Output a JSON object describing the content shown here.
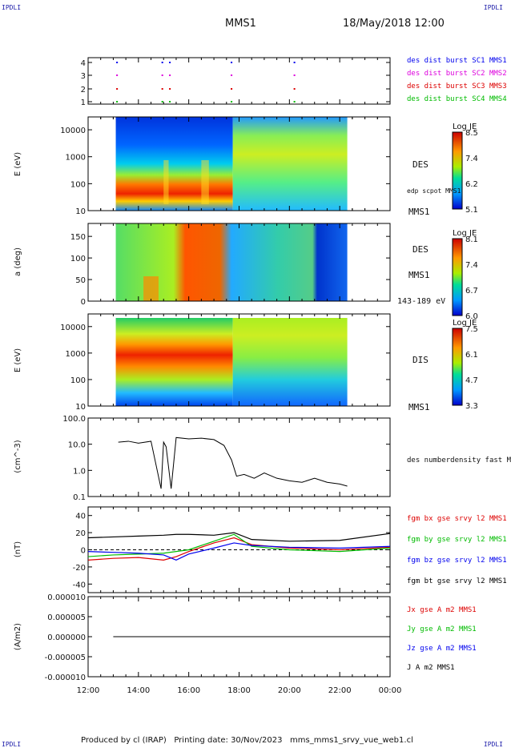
{
  "corner_label": "IPDLI",
  "header": {
    "mission": "MMS1",
    "date_time": "18/May/2018 12:00"
  },
  "footer": {
    "text": "Produced by cl (IRAP)   Printing date: 30/Nov/2023   mms_mms1_srvy_vue_web1.cl"
  },
  "colors": {
    "red": "#dd0000",
    "green": "#00bb00",
    "blue": "#0000ee",
    "magenta": "#dd00dd",
    "black": "#000000"
  },
  "chart_data": [
    {
      "type": "scatter",
      "panel": "burst",
      "yticks": [
        "4",
        "3",
        "2",
        "1"
      ],
      "legend": [
        {
          "name": "des dist burst SC1 MMS1",
          "color": "#0000ee"
        },
        {
          "name": "des dist burst SC2 MMS2",
          "color": "#dd00dd"
        },
        {
          "name": "des dist burst SC3 MMS3",
          "color": "#dd0000"
        },
        {
          "name": "des dist burst SC4 MMS4",
          "color": "#00bb00"
        }
      ],
      "burst_times_h": [
        13.15,
        14.95,
        15.25,
        17.7,
        20.2
      ]
    },
    {
      "type": "heatmap",
      "panel": "des_energy",
      "ylabel": "E (eV)",
      "yscale": "log",
      "ylim": [
        10,
        30000
      ],
      "yticks": [
        "10000",
        "1000",
        "100",
        "10"
      ],
      "side_labels": [
        "DES",
        "edp scpot MMS1",
        "MMS1"
      ],
      "colorbar": {
        "title": "Log JE",
        "ticks": [
          "8.5",
          "7.4",
          "6.2",
          "5.1"
        ]
      },
      "data_start_h": 13.1,
      "data_end_h": 22.3
    },
    {
      "type": "heatmap",
      "panel": "des_pitch",
      "ylabel": "a (deg)",
      "ylim": [
        0,
        180
      ],
      "yticks": [
        "150",
        "100",
        "50",
        "0"
      ],
      "side_labels": [
        "DES",
        "MMS1",
        "143-189 eV"
      ],
      "colorbar": {
        "title": "Log JE",
        "ticks": [
          "8.1",
          "7.4",
          "6.7",
          "6.0"
        ]
      }
    },
    {
      "type": "heatmap",
      "panel": "dis_energy",
      "ylabel": "E (eV)",
      "yscale": "log",
      "ylim": [
        10,
        30000
      ],
      "yticks": [
        "10000",
        "1000",
        "100",
        "10"
      ],
      "side_labels": [
        "DIS",
        "MMS1"
      ],
      "colorbar": {
        "title": "Log JE",
        "ticks": [
          "7.5",
          "6.1",
          "4.7",
          "3.3"
        ]
      }
    },
    {
      "type": "line",
      "panel": "density",
      "ylabel": "(cm^-3)",
      "yscale": "log",
      "ylim": [
        0.1,
        100
      ],
      "yticks": [
        "100.0",
        "10.0",
        "1.0",
        "0.1"
      ],
      "series": [
        {
          "name": "des numberdensity fast M",
          "x": [
            13.2,
            13.6,
            14.0,
            14.5,
            14.9,
            15.0,
            15.1,
            15.3,
            15.5,
            16.0,
            16.5,
            17.0,
            17.4,
            17.7,
            17.9,
            18.2,
            18.6,
            19.0,
            19.5,
            20.0,
            20.5,
            21.0,
            21.5,
            22.0,
            22.3
          ],
          "y": [
            12,
            13,
            11,
            13,
            0.2,
            12,
            8,
            0.2,
            18,
            16,
            17,
            15,
            9,
            2.5,
            0.6,
            0.7,
            0.5,
            0.8,
            0.5,
            0.4,
            0.35,
            0.5,
            0.35,
            0.3,
            0.25
          ]
        }
      ]
    },
    {
      "type": "line",
      "panel": "fgm",
      "ylabel": "(nT)",
      "ylim": [
        -50,
        50
      ],
      "yticks": [
        "40",
        "20",
        "0",
        "-20",
        "-40"
      ],
      "series": [
        {
          "name": "fgm bx gse srvy l2 MMS1",
          "color": "#dd0000",
          "x": [
            12.0,
            13.0,
            14.0,
            15.0,
            15.5,
            16.0,
            17.0,
            17.8,
            18.5,
            20.0,
            22.0,
            24.0
          ],
          "y": [
            -12,
            -10,
            -9,
            -12,
            -8,
            -2,
            8,
            14,
            6,
            2,
            0,
            3
          ]
        },
        {
          "name": "fgm by gse srvy l2 MMS1",
          "color": "#00bb00",
          "x": [
            12.0,
            13.0,
            14.0,
            15.0,
            15.5,
            16.0,
            17.0,
            17.8,
            18.5,
            20.0,
            22.0,
            24.0
          ],
          "y": [
            -8,
            -6,
            -5,
            -4,
            -2,
            0,
            10,
            18,
            4,
            0,
            -2,
            2
          ]
        },
        {
          "name": "fgm bz gse srvy l2 MMS1",
          "color": "#0000ee",
          "x": [
            12.0,
            13.0,
            14.0,
            15.0,
            15.5,
            16.0,
            17.0,
            17.8,
            18.5,
            20.0,
            22.0,
            24.0
          ],
          "y": [
            -2,
            -3,
            -4,
            -6,
            -12,
            -5,
            2,
            8,
            5,
            3,
            2,
            4
          ]
        },
        {
          "name": "fgm bt gse srvy l2 MMS1",
          "color": "#000000",
          "x": [
            12.0,
            13.0,
            14.0,
            15.0,
            15.5,
            16.0,
            17.0,
            17.8,
            18.5,
            20.0,
            22.0,
            24.0
          ],
          "y": [
            14,
            15,
            16,
            17,
            18,
            18,
            17,
            20,
            12,
            10,
            11,
            19
          ]
        }
      ]
    },
    {
      "type": "line",
      "panel": "current",
      "ylabel": "(A/m2)",
      "ylim": [
        -1e-05,
        1e-05
      ],
      "yticks": [
        "0.000010",
        "0.000005",
        "0.000000",
        "-0.000005",
        "-0.000010"
      ],
      "series": [
        {
          "name": "Jx gse A m2 MMS1",
          "color": "#dd0000"
        },
        {
          "name": "Jy gse A m2 MMS1",
          "color": "#00bb00"
        },
        {
          "name": "Jz gse A m2 MMS1",
          "color": "#0000ee"
        },
        {
          "name": "J A m2 MMS1",
          "color": "#000000",
          "x": [
            13.0,
            24.0
          ],
          "y": [
            0,
            0
          ]
        }
      ],
      "xticks": [
        "12:00",
        "14:00",
        "16:00",
        "18:00",
        "20:00",
        "22:00",
        "00:00"
      ]
    }
  ]
}
